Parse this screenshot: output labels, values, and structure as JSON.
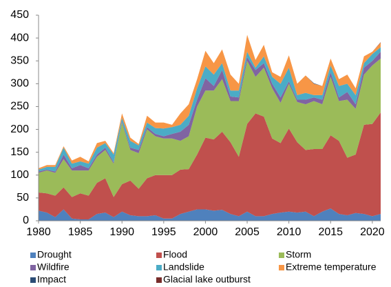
{
  "chart_data": {
    "type": "stacked_area",
    "x": [
      1980,
      1981,
      1982,
      1983,
      1984,
      1985,
      1986,
      1987,
      1988,
      1989,
      1990,
      1991,
      1992,
      1993,
      1994,
      1995,
      1996,
      1997,
      1998,
      1999,
      2000,
      2001,
      2002,
      2003,
      2004,
      2005,
      2006,
      2007,
      2008,
      2009,
      2010,
      2011,
      2012,
      2013,
      2014,
      2015,
      2016,
      2017,
      2018,
      2019,
      2020,
      2021
    ],
    "xlim": [
      1980,
      2021
    ],
    "xticks": [
      1980,
      1985,
      1990,
      1995,
      2000,
      2005,
      2010,
      2015,
      2020
    ],
    "ylim": [
      0,
      450
    ],
    "yticks": [
      0,
      50,
      100,
      150,
      200,
      250,
      300,
      350,
      400,
      450
    ],
    "series": [
      {
        "name": "Drought",
        "color": "#4f81bd",
        "values": [
          22,
          18,
          8,
          25,
          5,
          3,
          3,
          15,
          18,
          8,
          20,
          12,
          10,
          10,
          12,
          5,
          5,
          15,
          20,
          25,
          25,
          22,
          24,
          15,
          10,
          20,
          10,
          10,
          15,
          18,
          20,
          18,
          20,
          10,
          20,
          27,
          15,
          12,
          17,
          15,
          10,
          15
        ]
      },
      {
        "name": "Flood",
        "color": "#c0504d",
        "values": [
          40,
          42,
          47,
          48,
          47,
          57,
          52,
          68,
          75,
          44,
          60,
          76,
          60,
          83,
          88,
          95,
          95,
          97,
          93,
          120,
          157,
          156,
          171,
          157,
          130,
          192,
          225,
          218,
          165,
          152,
          182,
          154,
          135,
          147,
          137,
          160,
          160,
          126,
          128,
          195,
          202,
          222
        ]
      },
      {
        "name": "Storm",
        "color": "#9bbb59",
        "values": [
          43,
          50,
          50,
          62,
          58,
          50,
          55,
          57,
          62,
          73,
          135,
          67,
          78,
          107,
          85,
          80,
          80,
          63,
          72,
          105,
          103,
          107,
          115,
          90,
          122,
          138,
          80,
          107,
          110,
          88,
          98,
          88,
          100,
          105,
          98,
          128,
          87,
          127,
          100,
          110,
          128,
          118
        ]
      },
      {
        "name": "Wildfire",
        "color": "#8064a2",
        "values": [
          3,
          2,
          3,
          10,
          5,
          12,
          5,
          5,
          5,
          3,
          3,
          5,
          7,
          5,
          5,
          5,
          10,
          20,
          25,
          15,
          27,
          10,
          20,
          10,
          8,
          8,
          15,
          10,
          10,
          12,
          5,
          5,
          10,
          8,
          10,
          10,
          8,
          17,
          10,
          15,
          10,
          15
        ]
      },
      {
        "name": "Landslide",
        "color": "#4bacc6",
        "values": [
          4,
          6,
          10,
          15,
          10,
          8,
          10,
          15,
          10,
          17,
          7,
          15,
          10,
          10,
          13,
          17,
          15,
          15,
          20,
          25,
          26,
          25,
          15,
          13,
          15,
          12,
          5,
          15,
          15,
          30,
          30,
          10,
          15,
          5,
          10,
          15,
          25,
          18,
          20,
          10,
          15,
          10
        ]
      },
      {
        "name": "Extreme temperature",
        "color": "#f79646",
        "values": [
          3,
          4,
          4,
          3,
          7,
          10,
          5,
          10,
          5,
          3,
          10,
          7,
          3,
          15,
          12,
          13,
          5,
          25,
          25,
          20,
          34,
          25,
          30,
          35,
          15,
          37,
          17,
          25,
          10,
          15,
          27,
          25,
          38,
          25,
          20,
          15,
          15,
          20,
          15,
          15,
          5,
          10
        ]
      },
      {
        "name": "Impact",
        "color": "#2c4d75",
        "values": [
          0,
          0,
          0,
          0,
          0,
          0,
          0,
          0,
          0,
          0,
          0,
          0,
          0,
          0,
          0,
          0,
          0,
          0,
          0,
          0,
          0,
          0,
          0,
          0,
          0,
          0,
          0,
          0,
          0,
          0,
          0,
          0,
          0,
          1,
          0,
          0,
          0,
          0,
          0,
          0,
          0,
          0
        ]
      },
      {
        "name": "Glacial lake outburst",
        "color": "#772c2a",
        "values": [
          0,
          0,
          0,
          0,
          0,
          0,
          0,
          0,
          0,
          0,
          0,
          0,
          0,
          0,
          0,
          0,
          0,
          0,
          0,
          0,
          0,
          0,
          0,
          0,
          0,
          0,
          0,
          0,
          0,
          0,
          0,
          0,
          0,
          0,
          0,
          0,
          0,
          0,
          0,
          0,
          0,
          1
        ]
      }
    ]
  }
}
